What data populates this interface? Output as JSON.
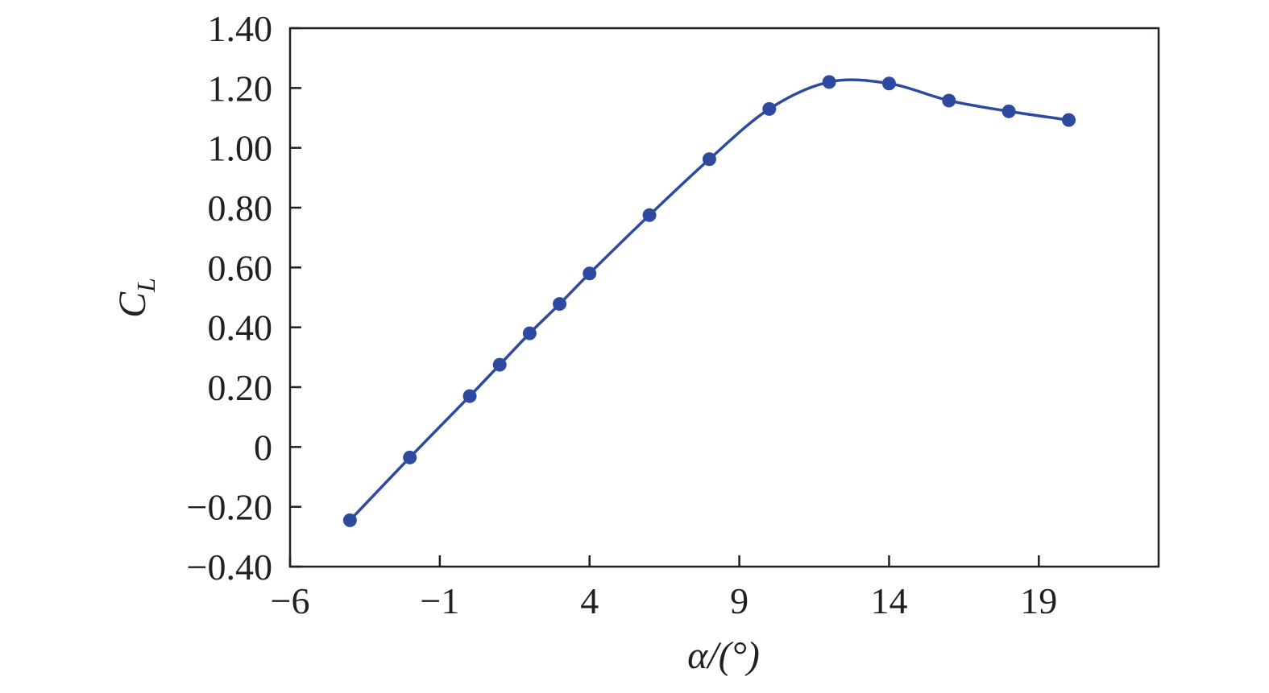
{
  "chart_data": {
    "type": "line",
    "title": "",
    "xlabel": "α/(°)",
    "ylabel": "C_L",
    "ylabel_main": "C",
    "ylabel_sub": "L",
    "xlim": [
      -6,
      23
    ],
    "ylim": [
      -0.4,
      1.4
    ],
    "xticks": [
      -6,
      -1,
      4,
      9,
      14,
      19
    ],
    "xtick_labels": [
      "−6",
      "−1",
      "4",
      "9",
      "14",
      "19"
    ],
    "yticks": [
      1.4,
      1.2,
      1.0,
      0.8,
      0.6,
      0.4,
      0.2,
      0,
      -0.2,
      -0.4
    ],
    "ytick_labels": [
      "1.40",
      "1.20",
      "1.00",
      "0.80",
      "0.60",
      "0.40",
      "0.20",
      "0",
      "−0.20",
      "−0.40"
    ],
    "grid": false,
    "legend": "none",
    "line_color": "#2e4aa0",
    "series": [
      {
        "x": [
          -4,
          -2,
          0,
          1,
          2,
          3,
          4,
          6,
          8,
          10,
          12,
          14,
          16,
          18,
          20
        ],
        "values": [
          -0.245,
          -0.035,
          0.17,
          0.275,
          0.38,
          0.478,
          0.58,
          0.775,
          0.962,
          1.13,
          1.22,
          1.215,
          1.158,
          1.122,
          1.093
        ]
      }
    ]
  }
}
